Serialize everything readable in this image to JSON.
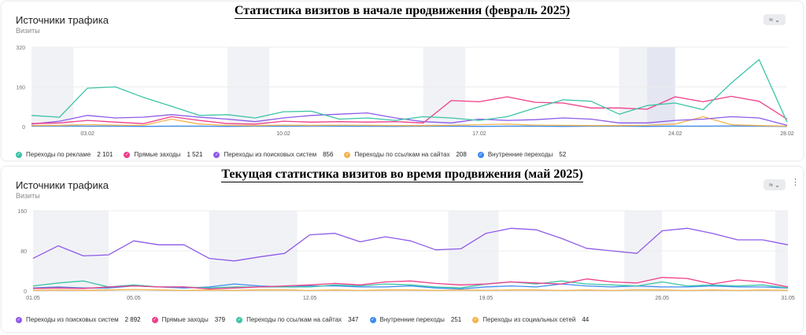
{
  "chart_data": [
    {
      "type": "line",
      "caption": "Статистика визитов в начале продвижения (февраль 2025)",
      "title": "Источники трафика",
      "subtitle": "Визиты",
      "ylim": [
        0,
        320
      ],
      "yticks": [
        "0",
        "160",
        "320"
      ],
      "x_range": [
        1,
        28
      ],
      "xticks": [
        {
          "x": 3,
          "label": "03.02"
        },
        {
          "x": 10,
          "label": "10.02"
        },
        {
          "x": 17,
          "label": "17.02"
        },
        {
          "x": 24,
          "label": "24.02"
        },
        {
          "x": 28,
          "label": "28.02"
        }
      ],
      "weekends": [
        [
          1,
          2.5
        ],
        [
          8,
          9.5
        ],
        [
          15,
          16.5
        ],
        [
          22,
          23.5
        ]
      ],
      "highlight": [
        23,
        24
      ],
      "legend_position": "bottom",
      "colors": {
        "reklama": "#3cc4a6",
        "pryamye": "#ef3e8a",
        "poisk": "#8e5ae8",
        "ssylki": "#f4b34c",
        "vnutr": "#3c8cf0"
      },
      "series": [
        {
          "key": "reklama",
          "name": "Переходы по рекламе",
          "total": "2 101",
          "values": [
            45,
            38,
            155,
            160,
            118,
            82,
            45,
            48,
            35,
            60,
            62,
            30,
            35,
            25,
            40,
            35,
            25,
            40,
            75,
            108,
            102,
            50,
            85,
            95,
            68,
            175,
            270,
            18
          ]
        },
        {
          "key": "pryamye",
          "name": "Прямые заходы",
          "total": "1 521",
          "values": [
            12,
            15,
            25,
            18,
            12,
            40,
            25,
            12,
            10,
            22,
            18,
            20,
            18,
            20,
            15,
            105,
            100,
            120,
            98,
            95,
            75,
            75,
            70,
            120,
            100,
            122,
            102,
            30
          ]
        },
        {
          "key": "poisk",
          "name": "Переходы из поисковых систем",
          "total": "856",
          "values": [
            10,
            22,
            45,
            35,
            38,
            48,
            38,
            30,
            20,
            35,
            45,
            50,
            55,
            35,
            20,
            15,
            30,
            25,
            28,
            35,
            30,
            15,
            15,
            25,
            30,
            40,
            35,
            5
          ]
        },
        {
          "key": "ssylki",
          "name": "Переходы по ссылкам на сайтах",
          "total": "208",
          "values": [
            4,
            5,
            8,
            6,
            5,
            30,
            10,
            5,
            4,
            6,
            5,
            6,
            5,
            4,
            4,
            5,
            8,
            10,
            6,
            5,
            4,
            4,
            5,
            10,
            40,
            8,
            4,
            2
          ]
        },
        {
          "key": "vnutr",
          "name": "Внутренние переходы",
          "total": "52",
          "values": [
            2,
            3,
            2,
            2,
            1,
            2,
            2,
            1,
            2,
            2,
            3,
            2,
            2,
            1,
            2,
            2,
            1,
            2,
            2,
            1,
            2,
            2,
            1,
            2,
            2,
            3,
            2,
            1
          ]
        }
      ]
    },
    {
      "type": "line",
      "caption": "Текущая статистика визитов во время продвижения (май 2025)",
      "title": "Источники трафика",
      "subtitle": "Визиты",
      "ylim": [
        0,
        160
      ],
      "yticks": [
        "0",
        "80",
        "160"
      ],
      "x_range": [
        1,
        31
      ],
      "xticks": [
        {
          "x": 1,
          "label": "01.05"
        },
        {
          "x": 5,
          "label": "05.05"
        },
        {
          "x": 12,
          "label": "12.05"
        },
        {
          "x": 19,
          "label": "19.05"
        },
        {
          "x": 26,
          "label": "26.05"
        },
        {
          "x": 31,
          "label": "31.05"
        }
      ],
      "weekends": [
        [
          1,
          4
        ],
        [
          8,
          11.5
        ],
        [
          17.5,
          19.5
        ],
        [
          24.5,
          26
        ],
        [
          30.5,
          31
        ]
      ],
      "highlight": null,
      "legend_position": "bottom",
      "colors": {
        "poisk": "#8e5ae8",
        "pryamye": "#ef3e8a",
        "ssylki": "#3cc4a6",
        "vnutr": "#3c8cf0",
        "social": "#f4b34c"
      },
      "series": [
        {
          "key": "poisk",
          "name": "Переходы из поисковых систем",
          "total": "2 892",
          "values": [
            65,
            90,
            70,
            72,
            100,
            92,
            92,
            65,
            60,
            68,
            75,
            112,
            115,
            98,
            108,
            100,
            82,
            84,
            115,
            125,
            122,
            105,
            85,
            80,
            75,
            120,
            125,
            115,
            102,
            102,
            92
          ]
        },
        {
          "key": "pryamye",
          "name": "Прямые заходы",
          "total": "379",
          "values": [
            5,
            6,
            5,
            8,
            10,
            8,
            8,
            4,
            6,
            8,
            10,
            12,
            15,
            12,
            18,
            20,
            15,
            12,
            14,
            18,
            16,
            14,
            24,
            18,
            16,
            27,
            25,
            14,
            22,
            18,
            8
          ]
        },
        {
          "key": "ssylki",
          "name": "Переходы по ссылкам на сайтах",
          "total": "347",
          "values": [
            10,
            16,
            20,
            8,
            12,
            8,
            8,
            6,
            8,
            8,
            8,
            8,
            12,
            10,
            14,
            12,
            8,
            6,
            14,
            18,
            14,
            20,
            14,
            12,
            10,
            18,
            10,
            12,
            10,
            12,
            6
          ]
        },
        {
          "key": "vnutr",
          "name": "Внутренние переходы",
          "total": "251",
          "values": [
            6,
            8,
            6,
            6,
            10,
            8,
            6,
            8,
            14,
            10,
            8,
            10,
            10,
            8,
            8,
            10,
            6,
            4,
            8,
            10,
            8,
            14,
            10,
            8,
            10,
            8,
            8,
            10,
            8,
            8,
            6
          ]
        },
        {
          "key": "social",
          "name": "Переходы из социальных сетей",
          "total": "44",
          "values": [
            1,
            2,
            1,
            2,
            3,
            2,
            1,
            2,
            1,
            2,
            2,
            1,
            2,
            1,
            2,
            2,
            1,
            2,
            1,
            2,
            2,
            1,
            2,
            1,
            2,
            2,
            1,
            2,
            1,
            2,
            1
          ]
        }
      ]
    }
  ]
}
